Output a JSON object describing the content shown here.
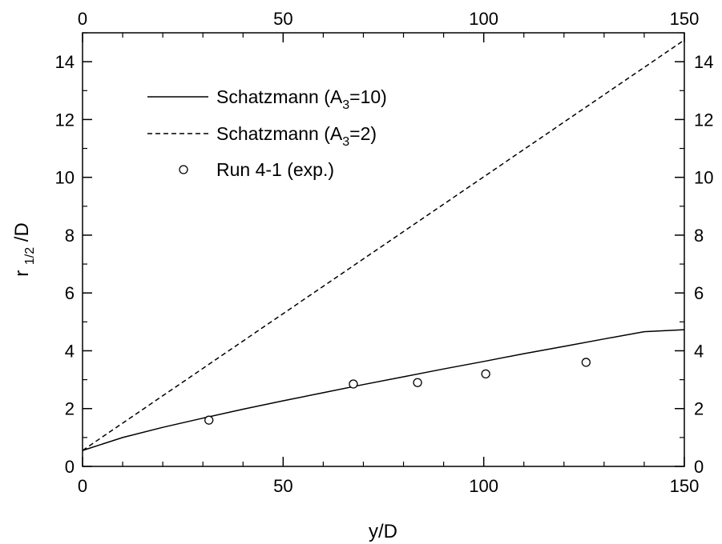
{
  "chart_data": {
    "type": "line",
    "xlabel": "y/D",
    "ylabel": {
      "main": "r",
      "sub": "1/2",
      "tail": "/D"
    },
    "xlim": [
      0,
      150
    ],
    "ylim": [
      0,
      15
    ],
    "x_ticks": [
      0,
      50,
      100,
      150
    ],
    "y_ticks": [
      0,
      2,
      4,
      6,
      8,
      10,
      12,
      14
    ],
    "x_minor_step": 10,
    "y_minor_step": 1,
    "top_axis_labels": true,
    "right_axis_labels": true,
    "grid": false,
    "legend_position": "top-left",
    "series": [
      {
        "name": {
          "main": "Schatzmann (A",
          "sub": "3",
          "tail": "=10)"
        },
        "style": "solid",
        "x": [
          0,
          10,
          20,
          30,
          40,
          50,
          60,
          70,
          80,
          90,
          100,
          110,
          120,
          130,
          140,
          150
        ],
        "y": [
          0.55,
          1.0,
          1.35,
          1.67,
          1.98,
          2.27,
          2.55,
          2.83,
          3.1,
          3.37,
          3.63,
          3.9,
          4.15,
          4.41,
          4.66,
          4.73
        ]
      },
      {
        "name": {
          "main": "Schatzmann (A",
          "sub": "3",
          "tail": "=2)"
        },
        "style": "dashed",
        "x": [
          0,
          150
        ],
        "y": [
          0.55,
          14.75
        ]
      },
      {
        "name": {
          "main": "Run 4-1 (exp.)",
          "sub": "",
          "tail": ""
        },
        "style": "markers",
        "x": [
          31.5,
          67.5,
          83.5,
          100.5,
          125.5
        ],
        "y": [
          1.6,
          2.85,
          2.9,
          3.2,
          3.6
        ]
      }
    ]
  }
}
